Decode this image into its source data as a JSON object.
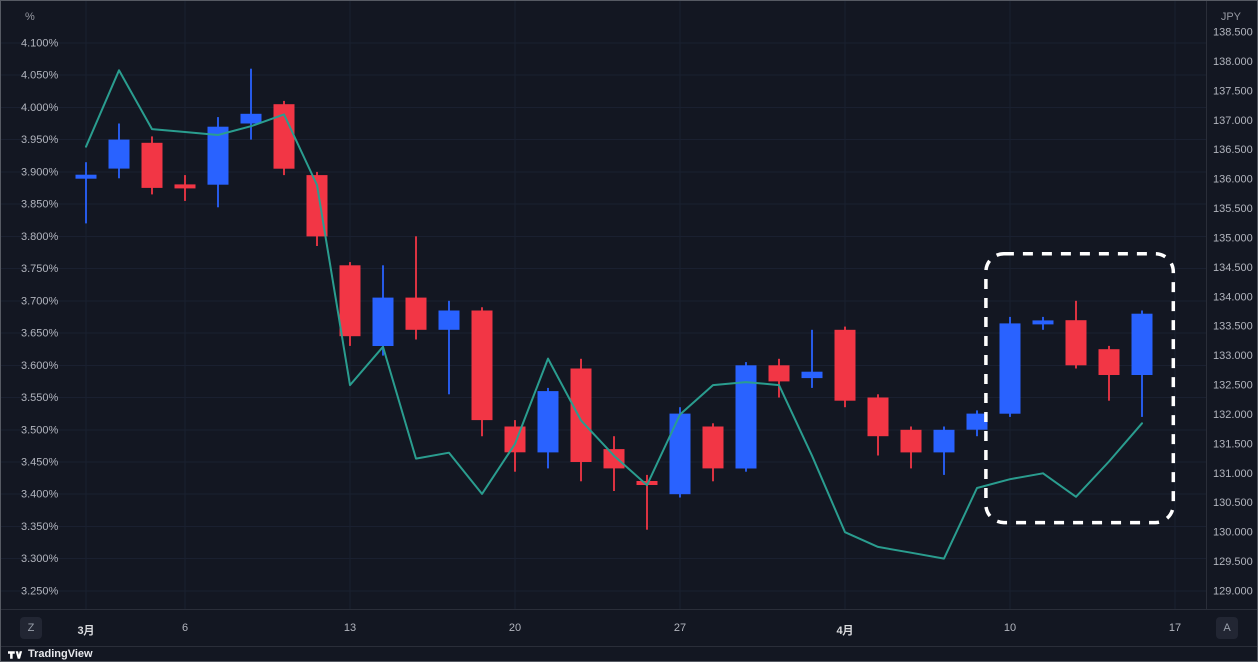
{
  "ui": {
    "left_axis_unit": "%",
    "right_axis_unit": "JPY",
    "corner_left_badge": "Z",
    "corner_right_badge": "A",
    "logo_text": "TradingView"
  },
  "colors": {
    "background": "#131722",
    "axis_text": "#b2b5be",
    "month_text": "#dcdde0",
    "grid": "#1a2030",
    "separator": "#2a2e39",
    "up": "#2962ff",
    "down": "#f23645",
    "line": "#2a9d8f",
    "annotation": "#ffffff"
  },
  "chart_data": {
    "type": "candlestick",
    "overlay": "line",
    "grid": "on",
    "legend_position": "none",
    "left_axis": {
      "unit": "%",
      "min": 3.222,
      "max": 4.165,
      "ticks": [
        {
          "label": "4.100%",
          "value": 4.1
        },
        {
          "label": "4.050%",
          "value": 4.05
        },
        {
          "label": "4.000%",
          "value": 4.0
        },
        {
          "label": "3.950%",
          "value": 3.95
        },
        {
          "label": "3.900%",
          "value": 3.9
        },
        {
          "label": "3.850%",
          "value": 3.85
        },
        {
          "label": "3.800%",
          "value": 3.8
        },
        {
          "label": "3.750%",
          "value": 3.75
        },
        {
          "label": "3.700%",
          "value": 3.7
        },
        {
          "label": "3.650%",
          "value": 3.65
        },
        {
          "label": "3.600%",
          "value": 3.6
        },
        {
          "label": "3.550%",
          "value": 3.55
        },
        {
          "label": "3.500%",
          "value": 3.5
        },
        {
          "label": "3.450%",
          "value": 3.45
        },
        {
          "label": "3.400%",
          "value": 3.4
        },
        {
          "label": "3.350%",
          "value": 3.35
        },
        {
          "label": "3.300%",
          "value": 3.3
        },
        {
          "label": "3.250%",
          "value": 3.25
        }
      ]
    },
    "right_axis": {
      "unit": "JPY",
      "min": 128.694,
      "max": 139.027,
      "ticks": [
        {
          "label": "138.500",
          "value": 138.5
        },
        {
          "label": "138.000",
          "value": 138.0
        },
        {
          "label": "137.500",
          "value": 137.5
        },
        {
          "label": "137.000",
          "value": 137.0
        },
        {
          "label": "136.500",
          "value": 136.5
        },
        {
          "label": "136.000",
          "value": 136.0
        },
        {
          "label": "135.500",
          "value": 135.5
        },
        {
          "label": "135.000",
          "value": 135.0
        },
        {
          "label": "134.500",
          "value": 134.5
        },
        {
          "label": "134.000",
          "value": 134.0
        },
        {
          "label": "133.500",
          "value": 133.5
        },
        {
          "label": "133.000",
          "value": 133.0
        },
        {
          "label": "132.500",
          "value": 132.5
        },
        {
          "label": "132.000",
          "value": 132.0
        },
        {
          "label": "131.500",
          "value": 131.5
        },
        {
          "label": "131.000",
          "value": 131.0
        },
        {
          "label": "130.500",
          "value": 130.5
        },
        {
          "label": "130.000",
          "value": 130.0
        },
        {
          "label": "129.500",
          "value": 129.5
        },
        {
          "label": "129.000",
          "value": 129.0
        }
      ]
    },
    "x_axis": {
      "labels": [
        {
          "label": "3月",
          "index": 0,
          "month": true
        },
        {
          "label": "6",
          "index": 3,
          "month": false
        },
        {
          "label": "13",
          "index": 8,
          "month": false
        },
        {
          "label": "20",
          "index": 13,
          "month": false
        },
        {
          "label": "27",
          "index": 18,
          "month": false
        },
        {
          "label": "4月",
          "index": 23,
          "month": true
        },
        {
          "label": "10",
          "index": 28,
          "month": false
        },
        {
          "label": "17",
          "index": 33,
          "month": false
        }
      ]
    },
    "candles": [
      {
        "date": "3/1",
        "o": 3.89,
        "h": 3.915,
        "l": 3.82,
        "c": 3.895
      },
      {
        "date": "3/2",
        "o": 3.905,
        "h": 3.975,
        "l": 3.89,
        "c": 3.95
      },
      {
        "date": "3/3",
        "o": 3.945,
        "h": 3.955,
        "l": 3.865,
        "c": 3.875
      },
      {
        "date": "3/6",
        "o": 3.88,
        "h": 3.895,
        "l": 3.855,
        "c": 3.875
      },
      {
        "date": "3/7",
        "o": 3.88,
        "h": 3.985,
        "l": 3.845,
        "c": 3.97
      },
      {
        "date": "3/8",
        "o": 3.975,
        "h": 4.06,
        "l": 3.95,
        "c": 3.99
      },
      {
        "date": "3/9",
        "o": 4.005,
        "h": 4.01,
        "l": 3.895,
        "c": 3.905
      },
      {
        "date": "3/10",
        "o": 3.895,
        "h": 3.9,
        "l": 3.785,
        "c": 3.8
      },
      {
        "date": "3/13",
        "o": 3.755,
        "h": 3.76,
        "l": 3.63,
        "c": 3.645
      },
      {
        "date": "3/14",
        "o": 3.63,
        "h": 3.755,
        "l": 3.615,
        "c": 3.705
      },
      {
        "date": "3/15",
        "o": 3.705,
        "h": 3.8,
        "l": 3.64,
        "c": 3.655
      },
      {
        "date": "3/16",
        "o": 3.655,
        "h": 3.7,
        "l": 3.555,
        "c": 3.685
      },
      {
        "date": "3/17",
        "o": 3.685,
        "h": 3.69,
        "l": 3.49,
        "c": 3.515
      },
      {
        "date": "3/20",
        "o": 3.505,
        "h": 3.515,
        "l": 3.435,
        "c": 3.465
      },
      {
        "date": "3/21",
        "o": 3.465,
        "h": 3.565,
        "l": 3.44,
        "c": 3.56
      },
      {
        "date": "3/22",
        "o": 3.595,
        "h": 3.61,
        "l": 3.42,
        "c": 3.45
      },
      {
        "date": "3/23",
        "o": 3.47,
        "h": 3.49,
        "l": 3.405,
        "c": 3.44
      },
      {
        "date": "3/24",
        "o": 3.42,
        "h": 3.43,
        "l": 3.345,
        "c": 3.415
      },
      {
        "date": "3/27",
        "o": 3.4,
        "h": 3.535,
        "l": 3.395,
        "c": 3.525
      },
      {
        "date": "3/28",
        "o": 3.505,
        "h": 3.51,
        "l": 3.42,
        "c": 3.44
      },
      {
        "date": "3/29",
        "o": 3.44,
        "h": 3.605,
        "l": 3.435,
        "c": 3.6
      },
      {
        "date": "3/30",
        "o": 3.6,
        "h": 3.61,
        "l": 3.55,
        "c": 3.575
      },
      {
        "date": "3/31",
        "o": 3.58,
        "h": 3.655,
        "l": 3.565,
        "c": 3.59
      },
      {
        "date": "4/3",
        "o": 3.655,
        "h": 3.66,
        "l": 3.535,
        "c": 3.545
      },
      {
        "date": "4/4",
        "o": 3.55,
        "h": 3.555,
        "l": 3.46,
        "c": 3.49
      },
      {
        "date": "4/5",
        "o": 3.5,
        "h": 3.505,
        "l": 3.44,
        "c": 3.465
      },
      {
        "date": "4/6",
        "o": 3.465,
        "h": 3.505,
        "l": 3.43,
        "c": 3.5
      },
      {
        "date": "4/7",
        "o": 3.5,
        "h": 3.53,
        "l": 3.49,
        "c": 3.525
      },
      {
        "date": "4/10",
        "o": 3.525,
        "h": 3.675,
        "l": 3.52,
        "c": 3.665
      },
      {
        "date": "4/11",
        "o": 3.665,
        "h": 3.675,
        "l": 3.655,
        "c": 3.668
      },
      {
        "date": "4/12",
        "o": 3.67,
        "h": 3.7,
        "l": 3.595,
        "c": 3.6
      },
      {
        "date": "4/13",
        "o": 3.625,
        "h": 3.63,
        "l": 3.545,
        "c": 3.585
      },
      {
        "date": "4/14",
        "o": 3.585,
        "h": 3.685,
        "l": 3.52,
        "c": 3.68
      }
    ],
    "line_series": {
      "name": "JPY",
      "color": "#2a9d8f",
      "axis": "right",
      "values": [
        136.55,
        137.85,
        136.85,
        136.8,
        136.75,
        136.9,
        137.1,
        135.9,
        132.5,
        133.15,
        131.25,
        131.35,
        130.65,
        131.5,
        132.95,
        131.9,
        131.3,
        130.8,
        132.0,
        132.5,
        132.55,
        132.5,
        131.3,
        130.0,
        129.75,
        129.65,
        129.55,
        130.75,
        130.9,
        131.0,
        130.6,
        131.2,
        131.85
      ]
    },
    "annotation_box": {
      "type": "dashed-rounded-rect",
      "start_index": 27.27,
      "end_index": 32.95,
      "top_pct": 3.773,
      "bottom_pct": 3.356,
      "color": "#ffffff",
      "highlights": "candles 4/10 - 4/14"
    }
  }
}
